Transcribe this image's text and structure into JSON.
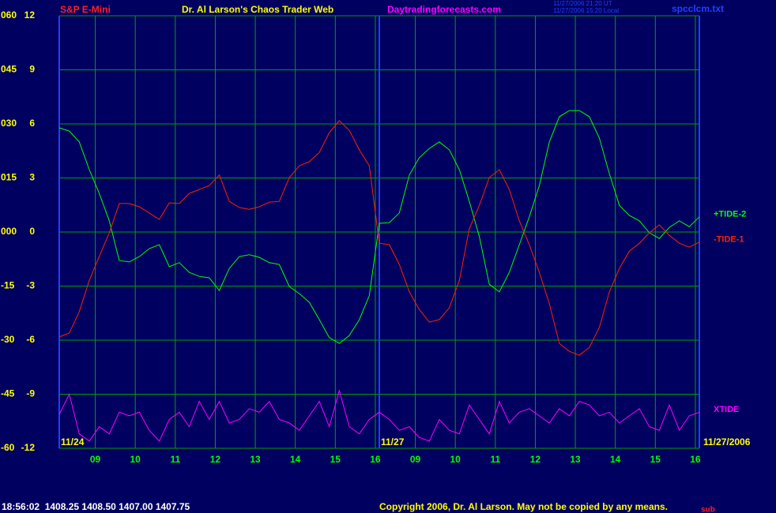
{
  "chart_data": {
    "type": "line",
    "title": "Dr. Al Larson's Chaos Trader Web",
    "symbol": "S&P E-Mini",
    "site": "Daytradingforecasts.com",
    "timestamps": [
      "11/27/2006 21:20 UT",
      "11/27/2006 15:20 Local"
    ],
    "file_name": "spcclcm.txt",
    "date_labels": [
      "11/24",
      "11/27",
      "11/27/2006"
    ],
    "status_line": "18:56:02  1408.25 1408.50 1407.00 1407.75",
    "copyright": "Copyright 2006, Dr. Al Larson. May not be copied by any means.",
    "footer_tag": "sub",
    "xlim": [
      0,
      16
    ],
    "session_break": 8,
    "xticks": [
      {
        "value": 0.9,
        "label": "09"
      },
      {
        "value": 1.9,
        "label": "10"
      },
      {
        "value": 2.9,
        "label": "11"
      },
      {
        "value": 3.9,
        "label": "12"
      },
      {
        "value": 4.9,
        "label": "13"
      },
      {
        "value": 5.9,
        "label": "14"
      },
      {
        "value": 6.9,
        "label": "15"
      },
      {
        "value": 7.9,
        "label": "16"
      },
      {
        "value": 8.9,
        "label": "09"
      },
      {
        "value": 9.9,
        "label": "10"
      },
      {
        "value": 10.9,
        "label": "11"
      },
      {
        "value": 11.9,
        "label": "12"
      },
      {
        "value": 12.9,
        "label": "13"
      },
      {
        "value": 13.9,
        "label": "14"
      },
      {
        "value": 14.9,
        "label": "15"
      },
      {
        "value": 15.9,
        "label": "16"
      }
    ],
    "ylim": [
      -60,
      60
    ],
    "yticks": [
      {
        "value": 60,
        "label": "060"
      },
      {
        "value": 45,
        "label": "045"
      },
      {
        "value": 30,
        "label": "030"
      },
      {
        "value": 15,
        "label": "015"
      },
      {
        "value": 0,
        "label": "000"
      },
      -15,
      -30,
      -45,
      -60
    ],
    "y2lim": [
      -12,
      12
    ],
    "y2ticks": [
      12,
      9,
      6,
      3,
      0,
      -3,
      -6,
      -9,
      -12
    ],
    "grid": true,
    "x": [
      0,
      0.25,
      0.5,
      0.75,
      1,
      1.25,
      1.5,
      1.75,
      2,
      2.25,
      2.5,
      2.75,
      3,
      3.25,
      3.5,
      3.75,
      4,
      4.25,
      4.5,
      4.75,
      5,
      5.25,
      5.5,
      5.75,
      6,
      6.25,
      6.5,
      6.75,
      7,
      7.25,
      7.5,
      7.75,
      8,
      8.25,
      8.5,
      8.75,
      9,
      9.25,
      9.5,
      9.75,
      10,
      10.25,
      10.5,
      10.75,
      11,
      11.25,
      11.5,
      11.75,
      12,
      12.25,
      12.5,
      12.75,
      13,
      13.25,
      13.5,
      13.75,
      14,
      14.25,
      14.5,
      14.75,
      15,
      15.25,
      15.5,
      15.75,
      16
    ],
    "series": [
      {
        "name": "+TIDE-2",
        "color": "#00ff00",
        "values": [
          28.9,
          28.0,
          25.0,
          17.3,
          10.7,
          3.1,
          -7.9,
          -8.3,
          -6.8,
          -4.6,
          -3.5,
          -9.6,
          -8.5,
          -11.2,
          -12.3,
          -12.7,
          -16.2,
          -10.1,
          -6.8,
          -6.3,
          -7.0,
          -8.5,
          -9.0,
          -15.1,
          -17.1,
          -19.5,
          -24.3,
          -29.3,
          -30.9,
          -28.7,
          -24.3,
          -17.7,
          2.4,
          2.6,
          5.3,
          15.8,
          20.6,
          23.2,
          25.0,
          22.8,
          17.3,
          8.5,
          -1.3,
          -14.5,
          -16.6,
          -11.2,
          -3.5,
          4.2,
          12.9,
          25.0,
          32.0,
          33.7,
          33.7,
          32.0,
          26.1,
          16.2,
          7.4,
          4.6,
          3.1,
          -0.2,
          -1.8,
          1.3,
          3.1,
          1.5,
          4.2
        ]
      },
      {
        "name": "-TIDE-1",
        "color": "#ff2000",
        "values": [
          -29.1,
          -28.0,
          -22.1,
          -13.4,
          -6.8,
          -0.2,
          7.9,
          7.9,
          7.0,
          5.3,
          3.5,
          8.1,
          7.9,
          10.7,
          11.8,
          12.9,
          15.8,
          8.5,
          6.8,
          6.3,
          7.0,
          8.3,
          8.5,
          15.1,
          18.4,
          19.5,
          22.1,
          27.6,
          30.9,
          28.2,
          22.8,
          18.4,
          -3.1,
          -3.5,
          -9.0,
          -16.6,
          -21.5,
          -25.0,
          -24.3,
          -21.0,
          -13.4,
          0.9,
          7.4,
          15.1,
          17.3,
          11.8,
          3.1,
          -3.5,
          -11.2,
          -19.9,
          -30.9,
          -33.1,
          -34.2,
          -32.0,
          -26.5,
          -16.6,
          -10.1,
          -5.3,
          -3.1,
          -0.2,
          2.0,
          -0.9,
          -3.1,
          -4.2,
          -2.8
        ]
      },
      {
        "name": "XTIDE",
        "color": "#ff00ff",
        "values": [
          -50.6,
          -45,
          -56,
          -58,
          -54,
          -56,
          -50,
          -51,
          -50,
          -55,
          -58,
          -52,
          -50,
          -54,
          -47,
          -52,
          -47,
          -53,
          -52,
          -49,
          -50,
          -47,
          -52,
          -53,
          -55,
          -51,
          -47,
          -54,
          -44,
          -54,
          -56,
          -52,
          -50,
          -52,
          -55,
          -54,
          -57,
          -58,
          -52,
          -55,
          -56,
          -48,
          -52,
          -56,
          -47,
          -53,
          -50,
          -49,
          -51,
          -53,
          -49,
          -51,
          -47,
          -48,
          -51,
          -50,
          -53,
          -51,
          -49,
          -54,
          -55,
          -48,
          -55,
          -51,
          -50
        ]
      }
    ]
  }
}
